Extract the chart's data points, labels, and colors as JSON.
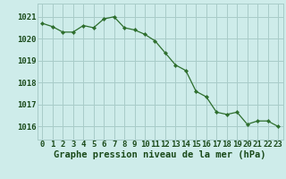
{
  "x": [
    0,
    1,
    2,
    3,
    4,
    5,
    6,
    7,
    8,
    9,
    10,
    11,
    12,
    13,
    14,
    15,
    16,
    17,
    18,
    19,
    20,
    21,
    22,
    23
  ],
  "y": [
    1020.7,
    1020.55,
    1020.3,
    1020.3,
    1020.6,
    1020.5,
    1020.9,
    1021.0,
    1020.5,
    1020.4,
    1020.2,
    1019.9,
    1019.35,
    1018.8,
    1018.55,
    1017.6,
    1017.35,
    1016.65,
    1016.55,
    1016.65,
    1016.1,
    1016.25,
    1016.25,
    1016.0
  ],
  "line_color": "#2d6e2d",
  "marker_color": "#2d6e2d",
  "bg_color": "#ceecea",
  "grid_color": "#a8ccc8",
  "ylabel_ticks": [
    1016,
    1017,
    1018,
    1019,
    1020,
    1021
  ],
  "xlabel": "Graphe pression niveau de la mer (hPa)",
  "ylim": [
    1015.4,
    1021.6
  ],
  "xlim": [
    -0.5,
    23.5
  ],
  "tick_fontsize": 6.5,
  "xlabel_fontsize": 7.5
}
